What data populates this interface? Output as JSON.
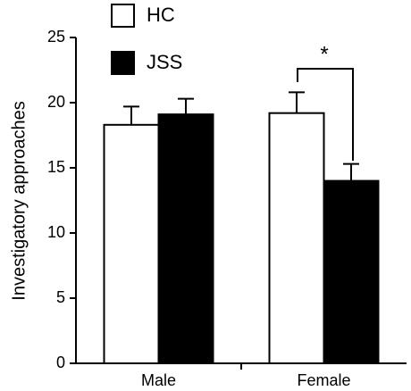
{
  "chart_data": {
    "type": "bar",
    "y_label": "Investigatory approaches",
    "categories": [
      "Male",
      "Female"
    ],
    "series": [
      {
        "name": "HC",
        "color": "#ffffff",
        "values": [
          18.3,
          19.2
        ],
        "errors": [
          1.4,
          1.6
        ]
      },
      {
        "name": "JSS",
        "color": "#000000",
        "values": [
          19.1,
          14.0
        ],
        "errors": [
          1.2,
          1.3
        ]
      }
    ],
    "annotation": "*",
    "ylim": [
      0,
      25
    ],
    "yticks": [
      0,
      5,
      10,
      15,
      20,
      25
    ],
    "legend": "top-left"
  }
}
